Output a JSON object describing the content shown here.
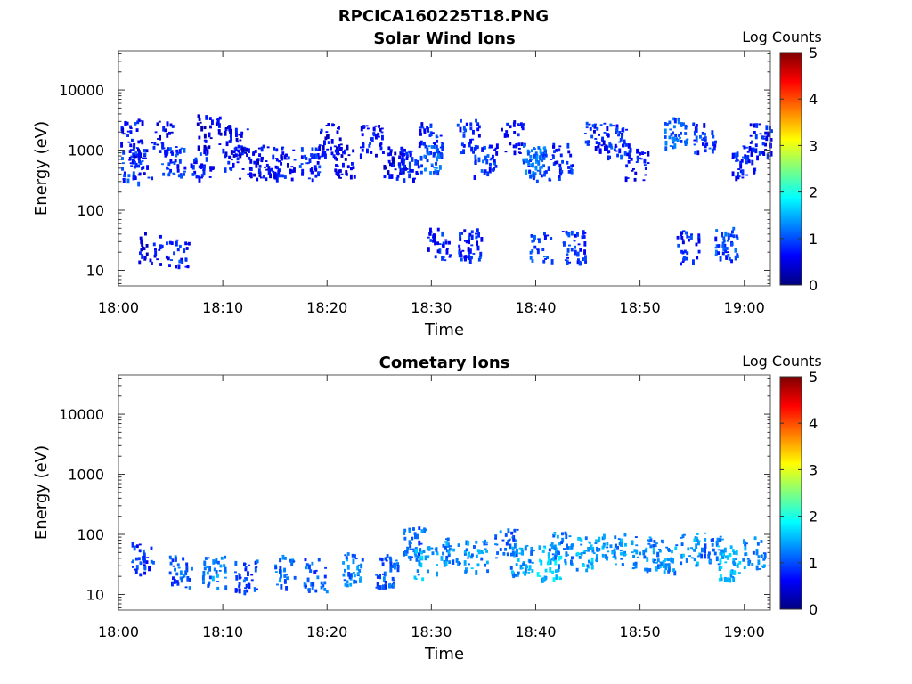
{
  "figure_title": "RPCICA160225T18.PNG",
  "colors": {
    "colormap": [
      "#00007f",
      "#0000ff",
      "#007fff",
      "#00ffff",
      "#7fff7f",
      "#ffff00",
      "#ff7f00",
      "#ff0000",
      "#7f0000"
    ]
  },
  "chart_data": [
    {
      "type": "heatmap",
      "title": "Solar Wind Ions",
      "xlabel": "Time",
      "ylabel": "Energy (eV)",
      "x_ticks": [
        "18:00",
        "18:10",
        "18:20",
        "18:30",
        "18:40",
        "18:50",
        "19:00"
      ],
      "y_ticks": [
        "10",
        "100",
        "1000",
        "10000"
      ],
      "y_scale": "log",
      "ylim": [
        5.5,
        45000
      ],
      "xlim_minutes": [
        0,
        62.5
      ],
      "colorbar": {
        "title": "Log Counts",
        "ticks": [
          "0",
          "1",
          "2",
          "3",
          "4",
          "5"
        ],
        "range": [
          0,
          5
        ]
      },
      "clusters": [
        {
          "t": 1.2,
          "e": 1800,
          "v": 0.8
        },
        {
          "t": 1.3,
          "e": 550,
          "v": 0.9
        },
        {
          "t": 2.0,
          "e": 650,
          "v": 0.7
        },
        {
          "t": 3.0,
          "e": 24,
          "v": 0.6
        },
        {
          "t": 4.1,
          "e": 1700,
          "v": 0.6
        },
        {
          "t": 5.2,
          "e": 650,
          "v": 0.9
        },
        {
          "t": 5.6,
          "e": 18,
          "v": 0.8
        },
        {
          "t": 7.9,
          "e": 650,
          "v": 0.8
        },
        {
          "t": 8.6,
          "e": 2200,
          "v": 0.5
        },
        {
          "t": 11.0,
          "e": 650,
          "v": 0.7
        },
        {
          "t": 11.2,
          "e": 1500,
          "v": 0.6
        },
        {
          "t": 13.4,
          "e": 650,
          "v": 0.6
        },
        {
          "t": 15.7,
          "e": 650,
          "v": 0.7
        },
        {
          "t": 18.4,
          "e": 600,
          "v": 0.8
        },
        {
          "t": 20.2,
          "e": 1600,
          "v": 0.6
        },
        {
          "t": 21.6,
          "e": 650,
          "v": 0.6
        },
        {
          "t": 24.2,
          "e": 1500,
          "v": 0.7
        },
        {
          "t": 26.4,
          "e": 650,
          "v": 0.6
        },
        {
          "t": 27.7,
          "e": 600,
          "v": 0.8
        },
        {
          "t": 29.7,
          "e": 1600,
          "v": 0.8
        },
        {
          "t": 30.0,
          "e": 750,
          "v": 1.1
        },
        {
          "t": 30.6,
          "e": 28,
          "v": 0.8
        },
        {
          "t": 33.5,
          "e": 1800,
          "v": 0.8
        },
        {
          "t": 33.6,
          "e": 28,
          "v": 0.8
        },
        {
          "t": 35.1,
          "e": 700,
          "v": 0.9
        },
        {
          "t": 37.6,
          "e": 1700,
          "v": 0.7
        },
        {
          "t": 39.8,
          "e": 700,
          "v": 1.2
        },
        {
          "t": 40.3,
          "e": 600,
          "v": 1.0
        },
        {
          "t": 40.4,
          "e": 28,
          "v": 1.0
        },
        {
          "t": 42.4,
          "e": 700,
          "v": 0.8
        },
        {
          "t": 43.6,
          "e": 26,
          "v": 0.9
        },
        {
          "t": 45.7,
          "e": 1700,
          "v": 0.8
        },
        {
          "t": 47.8,
          "e": 1500,
          "v": 0.9
        },
        {
          "t": 49.6,
          "e": 600,
          "v": 0.7
        },
        {
          "t": 53.4,
          "e": 2000,
          "v": 1.1
        },
        {
          "t": 54.5,
          "e": 25,
          "v": 0.8
        },
        {
          "t": 56.1,
          "e": 1700,
          "v": 0.9
        },
        {
          "t": 58.2,
          "e": 28,
          "v": 1.0
        },
        {
          "t": 59.8,
          "e": 650,
          "v": 0.8
        },
        {
          "t": 61.6,
          "e": 1500,
          "v": 0.7
        }
      ]
    },
    {
      "type": "heatmap",
      "title": "Cometary Ions",
      "xlabel": "Time",
      "ylabel": "Energy (eV)",
      "x_ticks": [
        "18:00",
        "18:10",
        "18:20",
        "18:30",
        "18:40",
        "18:50",
        "19:00"
      ],
      "y_ticks": [
        "10",
        "100",
        "1000",
        "10000"
      ],
      "y_scale": "log",
      "ylim": [
        5.5,
        45000
      ],
      "xlim_minutes": [
        0,
        62.5
      ],
      "colorbar": {
        "title": "Log Counts",
        "ticks": [
          "0",
          "1",
          "2",
          "3",
          "4",
          "5"
        ],
        "range": [
          0,
          5
        ]
      },
      "clusters": [
        {
          "t": 2.3,
          "e": 40,
          "v": 0.9
        },
        {
          "t": 5.9,
          "e": 25,
          "v": 1.1
        },
        {
          "t": 9.1,
          "e": 25,
          "v": 1.3
        },
        {
          "t": 12.2,
          "e": 22,
          "v": 1.0
        },
        {
          "t": 15.7,
          "e": 25,
          "v": 1.2
        },
        {
          "t": 18.8,
          "e": 22,
          "v": 1.1
        },
        {
          "t": 22.2,
          "e": 28,
          "v": 1.3
        },
        {
          "t": 25.6,
          "e": 25,
          "v": 1.1
        },
        {
          "t": 28.3,
          "e": 80,
          "v": 1.2
        },
        {
          "t": 29.4,
          "e": 35,
          "v": 1.5
        },
        {
          "t": 31.8,
          "e": 60,
          "v": 1.3
        },
        {
          "t": 34.2,
          "e": 45,
          "v": 1.4
        },
        {
          "t": 37.1,
          "e": 70,
          "v": 1.2
        },
        {
          "t": 38.6,
          "e": 40,
          "v": 1.4
        },
        {
          "t": 41.2,
          "e": 35,
          "v": 1.7
        },
        {
          "t": 42.3,
          "e": 60,
          "v": 1.3
        },
        {
          "t": 44.9,
          "e": 50,
          "v": 1.5
        },
        {
          "t": 47.4,
          "e": 60,
          "v": 1.4
        },
        {
          "t": 50.2,
          "e": 50,
          "v": 1.3
        },
        {
          "t": 52.3,
          "e": 45,
          "v": 1.4
        },
        {
          "t": 54.7,
          "e": 55,
          "v": 1.4
        },
        {
          "t": 56.8,
          "e": 60,
          "v": 1.2
        },
        {
          "t": 58.4,
          "e": 35,
          "v": 1.6
        },
        {
          "t": 60.8,
          "e": 50,
          "v": 1.3
        }
      ]
    }
  ]
}
